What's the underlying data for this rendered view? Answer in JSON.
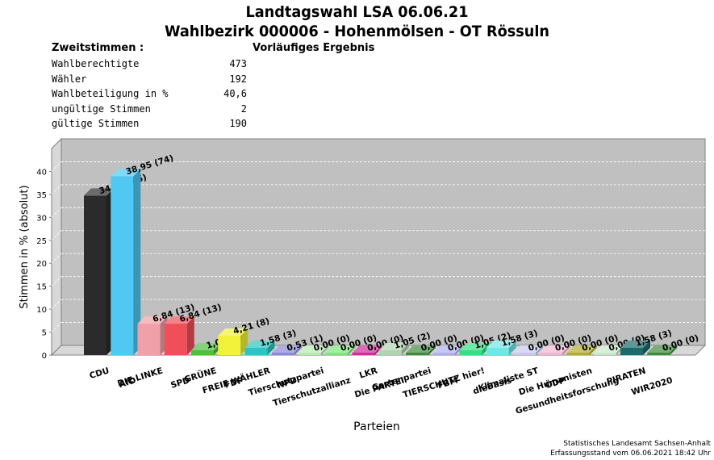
{
  "header": {
    "title_line1": "Landtagswahl LSA 06.06.21",
    "title_line2": "Wahlbezirk 000006 - Hohenmölsen - OT Rössuln",
    "section_label": "Zweitstimmen :",
    "status": "Vorläufiges Ergebnis"
  },
  "stats": [
    {
      "label": "Wahlberechtigte",
      "value": "473"
    },
    {
      "label": "Wähler",
      "value": "192"
    },
    {
      "label": "Wahlbeteiligung in %",
      "value": "40,6"
    },
    {
      "label": "ungültige Stimmen",
      "value": "2"
    },
    {
      "label": "gültige Stimmen",
      "value": "190"
    }
  ],
  "chart_data": {
    "type": "bar",
    "xlabel": "Parteien",
    "ylabel": "Stimmen in % (absolut)",
    "ylim": [
      0,
      45
    ],
    "yticks": [
      "0",
      "5",
      "10",
      "15",
      "20",
      "25",
      "30",
      "35",
      "40"
    ],
    "grid": true,
    "categories": [
      "CDU",
      "AfD",
      "DIE LINKE",
      "SPD",
      "GRÜNE",
      "FDP",
      "FREIE WÄHLER",
      "NPD",
      "Tierschutzpartei",
      "Tierschutzallianz",
      "LKR",
      "Die PARTEI",
      "Gartenpartei",
      "FBM",
      "TIERSCHUTZ hier!",
      "dieBasis",
      "Klimaliste ST",
      "ÖDP",
      "Die Humanisten",
      "Gesundheitsforschung",
      "PIRATEN",
      "WIR2020"
    ],
    "values": [
      34.74,
      38.95,
      6.84,
      6.84,
      1.05,
      4.21,
      1.58,
      0.53,
      0.0,
      0.0,
      0.0,
      1.05,
      0.0,
      0.0,
      1.05,
      1.58,
      0.0,
      0.0,
      0.0,
      0.0,
      1.58,
      0.0
    ],
    "labels": [
      "34,74 (66)",
      "38,95 (74)",
      "6,84 (13)",
      "6,84 (13)",
      "1,05 (2)",
      "4,21 (8)",
      "1,58 (3)",
      "0,53 (1)",
      "0,00 (0)",
      "0,00 (0)",
      "0,00 (0)",
      "1,05 (2)",
      "0,00 (0)",
      "0,00 (0)",
      "1,05 (2)",
      "1,58 (3)",
      "0,00 (0)",
      "0,00 (0)",
      "0,00 (0)",
      "0,00 (0)",
      "1,58 (3)",
      "0,00 (0)"
    ],
    "colors": [
      "#2b2b2b",
      "#4fc8f2",
      "#f0a0a8",
      "#ef4f58",
      "#4fbf3f",
      "#f2f23a",
      "#2cc4c4",
      "#8a8ad8",
      "#b8eab0",
      "#78e878",
      "#d02c9a",
      "#b0d4b0",
      "#3c8c3c",
      "#b0b0f0",
      "#33e083",
      "#72e6e6",
      "#c8c8f2",
      "#f2b4d2",
      "#b4ae30",
      "#c8e8c8",
      "#1c6a6a",
      "#3c8c3c"
    ]
  },
  "footer": {
    "source": "Statistisches Landesamt Sachsen-Anhalt",
    "timestamp": "Erfassungsstand vom 06.06.2021 18:42 Uhr"
  }
}
